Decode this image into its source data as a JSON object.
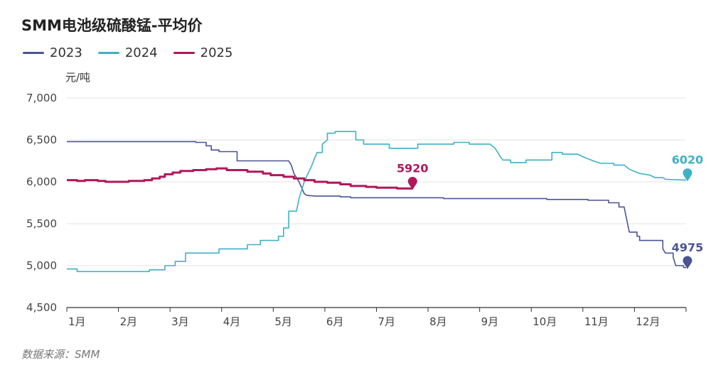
{
  "chart_data": {
    "type": "line",
    "title": "SMM电池级硫酸锰-平均价",
    "ylabel": "元/吨",
    "xlabel": "",
    "ylim": [
      4500,
      7000
    ],
    "yticks": [
      "4,500",
      "5,000",
      "5,500",
      "6,000",
      "6,500",
      "7,000"
    ],
    "ytick_values": [
      4500,
      5000,
      5500,
      6000,
      6500,
      7000
    ],
    "xticks": [
      "1月",
      "2月",
      "3月",
      "4月",
      "5月",
      "6月",
      "7月",
      "8月",
      "9月",
      "10月",
      "11月",
      "12月"
    ],
    "x_domain": [
      0,
      12
    ],
    "grid": true,
    "legend_position": "top-left",
    "source": "数据来源：SMM",
    "series": [
      {
        "name": "2023",
        "color": "#4a5493",
        "end_label": "4975",
        "points": [
          [
            0,
            6480
          ],
          [
            1.5,
            6480
          ],
          [
            2.5,
            6480
          ],
          [
            2.5,
            6470
          ],
          [
            2.7,
            6470
          ],
          [
            2.7,
            6430
          ],
          [
            2.8,
            6430
          ],
          [
            2.8,
            6380
          ],
          [
            2.95,
            6380
          ],
          [
            2.95,
            6360
          ],
          [
            3.3,
            6360
          ],
          [
            3.3,
            6250
          ],
          [
            4.3,
            6250
          ],
          [
            4.35,
            6200
          ],
          [
            4.4,
            6100
          ],
          [
            4.5,
            6000
          ],
          [
            4.55,
            5930
          ],
          [
            4.6,
            5860
          ],
          [
            4.65,
            5840
          ],
          [
            4.8,
            5830
          ],
          [
            5.3,
            5830
          ],
          [
            5.3,
            5820
          ],
          [
            5.5,
            5820
          ],
          [
            5.5,
            5810
          ],
          [
            6.2,
            5810
          ],
          [
            7.3,
            5810
          ],
          [
            7.3,
            5800
          ],
          [
            9.3,
            5800
          ],
          [
            9.3,
            5790
          ],
          [
            10.1,
            5790
          ],
          [
            10.1,
            5780
          ],
          [
            10.5,
            5780
          ],
          [
            10.5,
            5750
          ],
          [
            10.7,
            5750
          ],
          [
            10.7,
            5700
          ],
          [
            10.8,
            5700
          ],
          [
            10.85,
            5550
          ],
          [
            10.9,
            5400
          ],
          [
            11.05,
            5400
          ],
          [
            11.05,
            5350
          ],
          [
            11.1,
            5350
          ],
          [
            11.1,
            5300
          ],
          [
            11.55,
            5300
          ],
          [
            11.55,
            5200
          ],
          [
            11.6,
            5150
          ],
          [
            11.75,
            5150
          ],
          [
            11.75,
            5100
          ],
          [
            11.8,
            5000
          ],
          [
            11.95,
            5000
          ],
          [
            11.95,
            4980
          ],
          [
            12.0,
            4975
          ]
        ]
      },
      {
        "name": "2024",
        "color": "#3fb1c5",
        "end_label": "6020",
        "points": [
          [
            0,
            4960
          ],
          [
            0.2,
            4960
          ],
          [
            0.2,
            4930
          ],
          [
            1,
            4930
          ],
          [
            1.6,
            4930
          ],
          [
            1.6,
            4950
          ],
          [
            1.9,
            4950
          ],
          [
            1.9,
            5000
          ],
          [
            2.1,
            5000
          ],
          [
            2.1,
            5050
          ],
          [
            2.3,
            5050
          ],
          [
            2.3,
            5150
          ],
          [
            2.95,
            5150
          ],
          [
            2.95,
            5200
          ],
          [
            3.5,
            5200
          ],
          [
            3.5,
            5250
          ],
          [
            3.75,
            5250
          ],
          [
            3.75,
            5300
          ],
          [
            4.1,
            5300
          ],
          [
            4.1,
            5350
          ],
          [
            4.2,
            5350
          ],
          [
            4.2,
            5450
          ],
          [
            4.3,
            5450
          ],
          [
            4.3,
            5650
          ],
          [
            4.45,
            5650
          ],
          [
            4.5,
            5800
          ],
          [
            4.6,
            6000
          ],
          [
            4.75,
            6200
          ],
          [
            4.8,
            6280
          ],
          [
            4.85,
            6350
          ],
          [
            4.95,
            6350
          ],
          [
            4.95,
            6450
          ],
          [
            5.05,
            6500
          ],
          [
            5.05,
            6580
          ],
          [
            5.2,
            6580
          ],
          [
            5.2,
            6600
          ],
          [
            5.6,
            6600
          ],
          [
            5.6,
            6500
          ],
          [
            5.75,
            6500
          ],
          [
            5.75,
            6450
          ],
          [
            6.25,
            6450
          ],
          [
            6.25,
            6400
          ],
          [
            6.8,
            6400
          ],
          [
            6.8,
            6450
          ],
          [
            7.5,
            6450
          ],
          [
            7.5,
            6470
          ],
          [
            7.8,
            6470
          ],
          [
            7.8,
            6450
          ],
          [
            8.2,
            6450
          ],
          [
            8.3,
            6400
          ],
          [
            8.4,
            6300
          ],
          [
            8.45,
            6260
          ],
          [
            8.6,
            6260
          ],
          [
            8.6,
            6230
          ],
          [
            8.9,
            6230
          ],
          [
            8.9,
            6260
          ],
          [
            9.4,
            6260
          ],
          [
            9.4,
            6350
          ],
          [
            9.6,
            6350
          ],
          [
            9.6,
            6330
          ],
          [
            9.9,
            6330
          ],
          [
            10,
            6300
          ],
          [
            10.2,
            6250
          ],
          [
            10.35,
            6220
          ],
          [
            10.6,
            6220
          ],
          [
            10.6,
            6200
          ],
          [
            10.8,
            6200
          ],
          [
            10.9,
            6150
          ],
          [
            11.1,
            6100
          ],
          [
            11.3,
            6080
          ],
          [
            11.4,
            6050
          ],
          [
            11.55,
            6050
          ],
          [
            11.6,
            6030
          ],
          [
            12.0,
            6020
          ]
        ]
      },
      {
        "name": "2025",
        "color": "#b0185a",
        "end_label": "5920",
        "points": [
          [
            0,
            6020
          ],
          [
            0.2,
            6020
          ],
          [
            0.2,
            6010
          ],
          [
            0.35,
            6010
          ],
          [
            0.35,
            6020
          ],
          [
            0.6,
            6020
          ],
          [
            0.6,
            6010
          ],
          [
            0.75,
            6010
          ],
          [
            0.75,
            6000
          ],
          [
            1.2,
            6000
          ],
          [
            1.2,
            6010
          ],
          [
            1.5,
            6010
          ],
          [
            1.5,
            6020
          ],
          [
            1.65,
            6020
          ],
          [
            1.65,
            6040
          ],
          [
            1.8,
            6040
          ],
          [
            1.8,
            6060
          ],
          [
            1.9,
            6060
          ],
          [
            1.9,
            6090
          ],
          [
            2.05,
            6090
          ],
          [
            2.05,
            6110
          ],
          [
            2.2,
            6110
          ],
          [
            2.2,
            6130
          ],
          [
            2.45,
            6130
          ],
          [
            2.45,
            6140
          ],
          [
            2.7,
            6140
          ],
          [
            2.7,
            6150
          ],
          [
            2.9,
            6150
          ],
          [
            2.9,
            6160
          ],
          [
            3.1,
            6160
          ],
          [
            3.1,
            6140
          ],
          [
            3.5,
            6140
          ],
          [
            3.5,
            6120
          ],
          [
            3.8,
            6120
          ],
          [
            3.8,
            6100
          ],
          [
            3.95,
            6100
          ],
          [
            3.95,
            6080
          ],
          [
            4.2,
            6080
          ],
          [
            4.2,
            6060
          ],
          [
            4.4,
            6060
          ],
          [
            4.4,
            6040
          ],
          [
            4.6,
            6040
          ],
          [
            4.6,
            6020
          ],
          [
            4.8,
            6020
          ],
          [
            4.8,
            6000
          ],
          [
            5.05,
            6000
          ],
          [
            5.05,
            5990
          ],
          [
            5.3,
            5990
          ],
          [
            5.3,
            5970
          ],
          [
            5.5,
            5970
          ],
          [
            5.5,
            5950
          ],
          [
            5.8,
            5950
          ],
          [
            5.8,
            5940
          ],
          [
            6.0,
            5940
          ],
          [
            6.0,
            5930
          ],
          [
            6.4,
            5930
          ],
          [
            6.4,
            5920
          ],
          [
            6.7,
            5920
          ]
        ]
      }
    ]
  }
}
